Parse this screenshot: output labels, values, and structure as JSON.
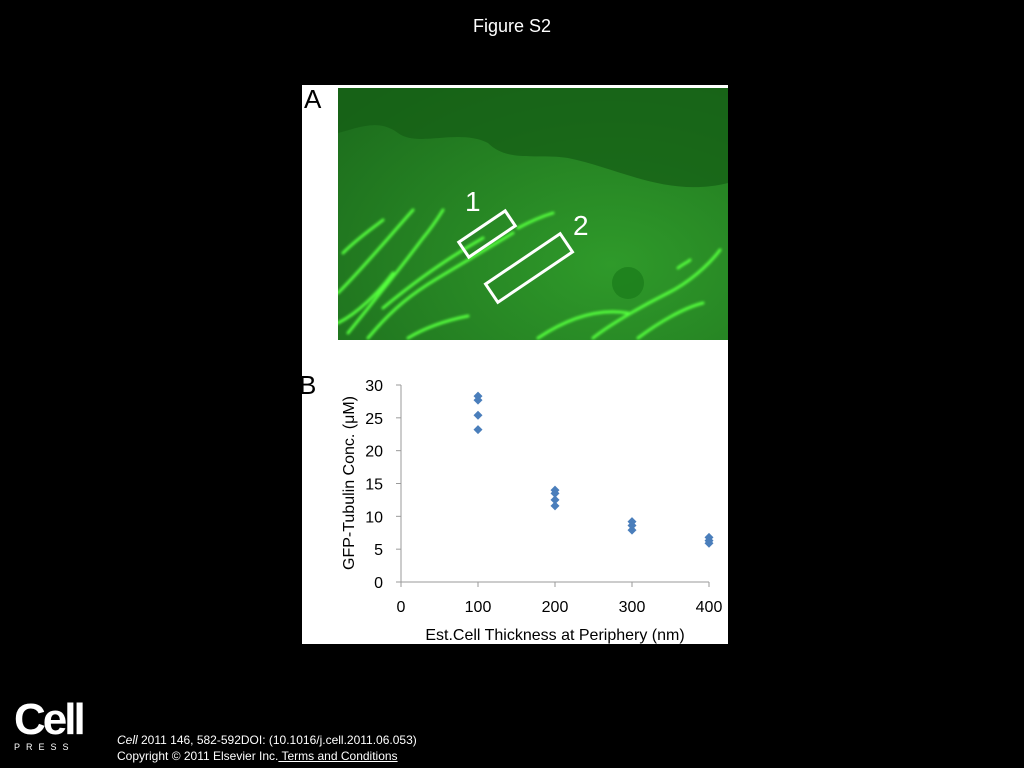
{
  "figure_title": "Figure S2",
  "panel_a_label": "A",
  "panel_b_label": "B",
  "region_labels": [
    "1",
    "2"
  ],
  "colors": {
    "background": "#000000",
    "micrograph_bg": "#1f7a1f",
    "microtubule": "#4dff3a",
    "marker": "#4a7ebb"
  },
  "chart_data": {
    "type": "scatter",
    "xlabel": "Est.Cell Thickness at Periphery (nm)",
    "ylabel": "GFP-Tubulin Conc.  (μM)",
    "xlim": [
      0,
      400
    ],
    "ylim": [
      0,
      30
    ],
    "xticks": [
      "0",
      "100",
      "200",
      "300",
      "400"
    ],
    "yticks": [
      "0",
      "5",
      "10",
      "15",
      "20",
      "25",
      "30"
    ],
    "grid": false,
    "points": [
      {
        "x": 100,
        "y": 28.3
      },
      {
        "x": 100,
        "y": 27.7
      },
      {
        "x": 100,
        "y": 25.4
      },
      {
        "x": 100,
        "y": 23.2
      },
      {
        "x": 200,
        "y": 14.0
      },
      {
        "x": 200,
        "y": 13.5
      },
      {
        "x": 200,
        "y": 12.5
      },
      {
        "x": 200,
        "y": 11.6
      },
      {
        "x": 300,
        "y": 9.2
      },
      {
        "x": 300,
        "y": 8.6
      },
      {
        "x": 300,
        "y": 7.9
      },
      {
        "x": 400,
        "y": 6.8
      },
      {
        "x": 400,
        "y": 6.3
      },
      {
        "x": 400,
        "y": 5.9
      }
    ]
  },
  "footer": {
    "logo_main": "Cell",
    "logo_sub": "PRESS",
    "journal": "Cell",
    "citation_rest": " 2011 146, 582-592DOI: (10.1016/j.cell.2011.06.053)",
    "copyright": "Copyright © 2011 Elsevier Inc.",
    "terms_link": " Terms and Conditions"
  }
}
